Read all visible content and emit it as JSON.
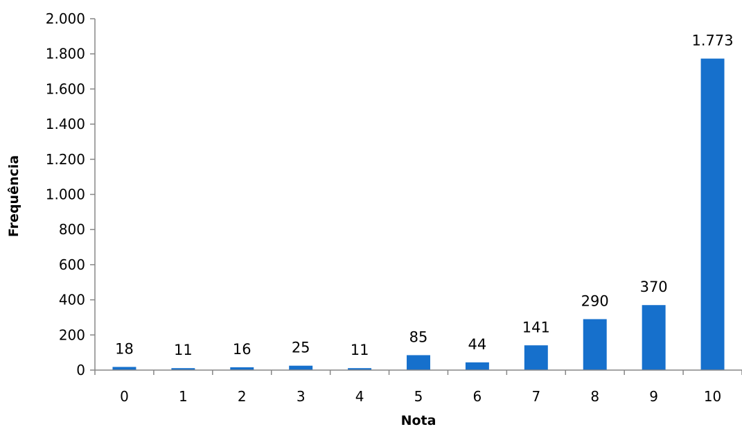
{
  "chart_data": {
    "type": "bar",
    "title": "",
    "xlabel": "Nota",
    "ylabel": "Frequência",
    "categories": [
      "0",
      "1",
      "2",
      "3",
      "4",
      "5",
      "6",
      "7",
      "8",
      "9",
      "10"
    ],
    "values": [
      18,
      11,
      16,
      25,
      11,
      85,
      44,
      141,
      290,
      370,
      1773
    ],
    "value_labels": [
      "18",
      "11",
      "16",
      "25",
      "11",
      "85",
      "44",
      "141",
      "290",
      "370",
      "1.773"
    ],
    "ylim": [
      0,
      2000
    ],
    "yticks": [
      0,
      200,
      400,
      600,
      800,
      1000,
      1200,
      1400,
      1600,
      1800,
      2000
    ],
    "ytick_labels": [
      "0",
      "200",
      "400",
      "600",
      "800",
      "1.000",
      "1.200",
      "1.400",
      "1.600",
      "1.800",
      "2.000"
    ],
    "bar_color": "#1670CC",
    "axis_color": "#868686",
    "grid": false,
    "legend": false
  }
}
